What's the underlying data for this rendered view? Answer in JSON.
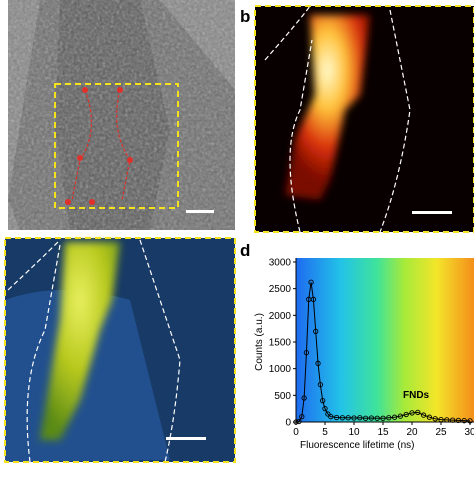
{
  "panel_labels": [
    "b",
    "d"
  ],
  "chart_data": {
    "type": "line",
    "xlabel": "Fluorescence lifetime (ns)",
    "ylabel": "Counts (a.u.)",
    "annotation": "FNDs",
    "x": [
      0,
      0.5,
      1.0,
      1.4,
      1.8,
      2.2,
      2.6,
      3.0,
      3.4,
      3.8,
      4.2,
      4.6,
      5.0,
      5.5,
      6,
      7,
      8,
      9,
      10,
      11,
      12,
      13,
      14,
      15,
      16,
      17,
      18,
      19,
      20,
      21,
      22,
      23,
      24,
      25,
      26,
      27,
      28,
      29,
      30
    ],
    "series": [
      {
        "name": "Counts",
        "color": "#000000",
        "values": [
          0,
          10,
          100,
          450,
          1300,
          2300,
          2620,
          2300,
          1700,
          1100,
          700,
          400,
          250,
          150,
          100,
          85,
          80,
          80,
          75,
          80,
          70,
          75,
          70,
          70,
          80,
          90,
          110,
          140,
          170,
          180,
          130,
          90,
          60,
          45,
          40,
          35,
          30,
          25,
          20
        ]
      }
    ],
    "xlim": [
      0,
      30
    ],
    "xticks": [
      0,
      5,
      10,
      15,
      20,
      25,
      30
    ],
    "ylim": [
      0,
      3000
    ],
    "yticks": [
      0,
      500,
      1000,
      1500,
      2000,
      2500,
      3000
    ]
  }
}
